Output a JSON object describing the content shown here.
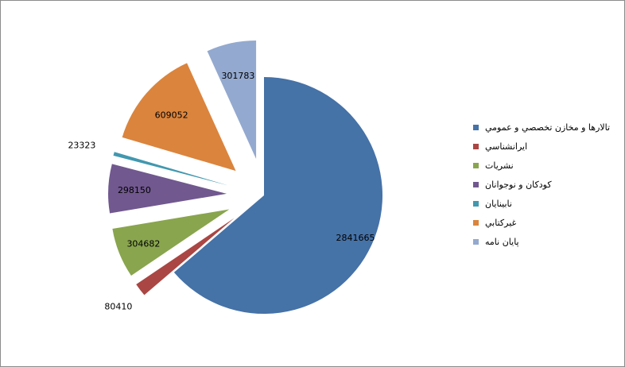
{
  "chart_data": {
    "type": "pie",
    "exploded": true,
    "legend_position": "right",
    "slices": [
      {
        "label": "تالارها و مخازن تخصصي و عمومي",
        "value": 2841665,
        "value_label": "2841665",
        "color": "#4572A7",
        "exploded": false
      },
      {
        "label": "ايرانشناسي",
        "value": 80410,
        "value_label": "80410",
        "color": "#AA4643",
        "exploded": true
      },
      {
        "label": "نشريات",
        "value": 304682,
        "value_label": "304682",
        "color": "#89A54E",
        "exploded": true
      },
      {
        "label": "كودكان و نوجوانان",
        "value": 298150,
        "value_label": "298150",
        "color": "#71588F",
        "exploded": true
      },
      {
        "label": "نابينايان",
        "value": 23323,
        "value_label": "23323",
        "color": "#4198AF",
        "exploded": true
      },
      {
        "label": "غيركتابي",
        "value": 609052,
        "value_label": "609052",
        "color": "#DB843D",
        "exploded": true
      },
      {
        "label": "پايان نامه",
        "value": 301783,
        "value_label": "301783",
        "color": "#93A9CF",
        "exploded": true
      }
    ]
  }
}
